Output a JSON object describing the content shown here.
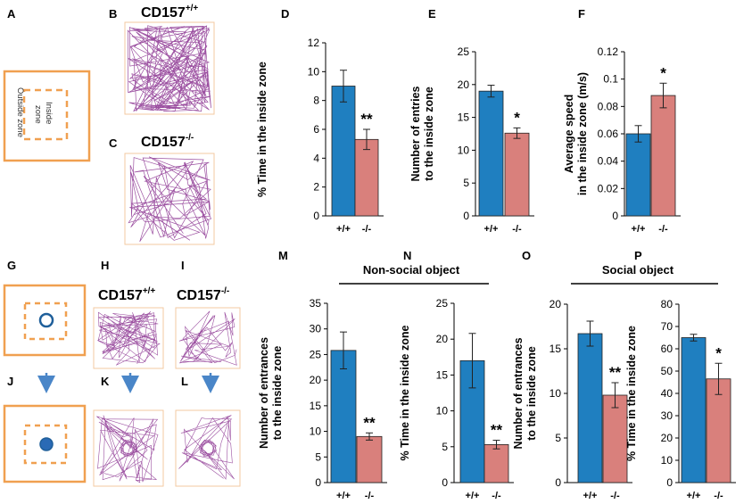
{
  "colors": {
    "wt": "#1f7fc0",
    "ko": "#d9807c",
    "arena": "#f0a050",
    "track": "#9b4fa0",
    "arrow": "#4a86c8"
  },
  "panel_letters": {
    "A": "A",
    "B": "B",
    "C": "C",
    "D": "D",
    "E": "E",
    "F": "F",
    "G": "G",
    "H": "H",
    "I": "I",
    "J": "J",
    "K": "K",
    "L": "L",
    "M": "M",
    "N": "N",
    "O": "O",
    "P": "P"
  },
  "schematic": {
    "inside_line1": "Inside",
    "inside_line2": "zone",
    "outside": "Outside zone"
  },
  "titles": {
    "wt_main": "CD157",
    "wt_sup": "+/+",
    "ko_main": "CD157",
    "ko_sup": "-/-"
  },
  "groups": {
    "nonsocial": "Non-social object",
    "social": "Social object"
  },
  "chart_data": [
    {
      "id": "D",
      "type": "bar",
      "categories": [
        "+/+",
        "-/-"
      ],
      "values": [
        9.0,
        5.3
      ],
      "errors": [
        1.1,
        0.7
      ],
      "ylim": [
        0,
        12
      ],
      "yticks": [
        0,
        2,
        4,
        6,
        8,
        10,
        12
      ],
      "ytick_labels": [
        "0",
        "2",
        "4",
        "6",
        "8",
        "10",
        "12"
      ],
      "ylabel": [
        "% Time in the inside zone"
      ],
      "significance": "**"
    },
    {
      "id": "E",
      "type": "bar",
      "categories": [
        "+/+",
        "-/-"
      ],
      "values": [
        19.0,
        12.6
      ],
      "errors": [
        0.9,
        0.8
      ],
      "ylim": [
        0,
        25
      ],
      "yticks": [
        0,
        5,
        10,
        15,
        20,
        25
      ],
      "ytick_labels": [
        "0",
        "5",
        "10",
        "15",
        "20",
        "25"
      ],
      "ylabel": [
        "Number of entries",
        "to the inside zone"
      ],
      "significance": "*"
    },
    {
      "id": "F",
      "type": "bar",
      "categories": [
        "+/+",
        "-/-"
      ],
      "values": [
        0.06,
        0.088
      ],
      "errors": [
        0.006,
        0.009
      ],
      "ylim": [
        0,
        0.12
      ],
      "yticks": [
        0,
        0.02,
        0.04,
        0.06,
        0.08,
        0.1,
        0.12
      ],
      "ytick_labels": [
        "0",
        "0.02",
        "0.04",
        "0.06",
        "0.08",
        "0.1",
        "0.12"
      ],
      "ylabel": [
        "Average speed",
        "in the inside zone (m/s)"
      ],
      "significance": "*"
    },
    {
      "id": "M",
      "type": "bar",
      "categories": [
        "+/+",
        "-/-"
      ],
      "values": [
        25.8,
        9.0
      ],
      "errors": [
        3.6,
        0.7
      ],
      "ylim": [
        0,
        35
      ],
      "yticks": [
        0,
        5,
        10,
        15,
        20,
        25,
        30,
        35
      ],
      "ytick_labels": [
        "0",
        "5",
        "10",
        "15",
        "20",
        "25",
        "30",
        "35"
      ],
      "ylabel": [
        "Number of entrances",
        "to the inside zone"
      ],
      "significance": "**"
    },
    {
      "id": "N",
      "type": "bar",
      "categories": [
        "+/+",
        "-/-"
      ],
      "values": [
        17.0,
        5.3
      ],
      "errors": [
        3.8,
        0.6
      ],
      "ylim": [
        0,
        25
      ],
      "yticks": [
        0,
        5,
        10,
        15,
        20,
        25
      ],
      "ytick_labels": [
        "0",
        "5",
        "10",
        "15",
        "20",
        "25"
      ],
      "ylabel": [
        "% Time in the inside zone"
      ],
      "significance": "**"
    },
    {
      "id": "O",
      "type": "bar",
      "categories": [
        "+/+",
        "-/-"
      ],
      "values": [
        16.7,
        9.8
      ],
      "errors": [
        1.4,
        1.4
      ],
      "ylim": [
        0,
        20
      ],
      "yticks": [
        0,
        5,
        10,
        15,
        20
      ],
      "ytick_labels": [
        "0",
        "5",
        "10",
        "15",
        "20"
      ],
      "ylabel": [
        "Number of entrances",
        "to the inside zone"
      ],
      "significance": "**"
    },
    {
      "id": "P",
      "type": "bar",
      "categories": [
        "+/+",
        "-/-"
      ],
      "values": [
        65.0,
        46.5
      ],
      "errors": [
        1.5,
        7.0
      ],
      "ylim": [
        0,
        80
      ],
      "yticks": [
        0,
        10,
        20,
        30,
        40,
        50,
        60,
        70,
        80
      ],
      "ytick_labels": [
        "0",
        "10",
        "20",
        "30",
        "40",
        "50",
        "60",
        "70",
        "80"
      ],
      "ylabel": [
        "% Time in the inside zone"
      ],
      "significance": "*"
    }
  ]
}
